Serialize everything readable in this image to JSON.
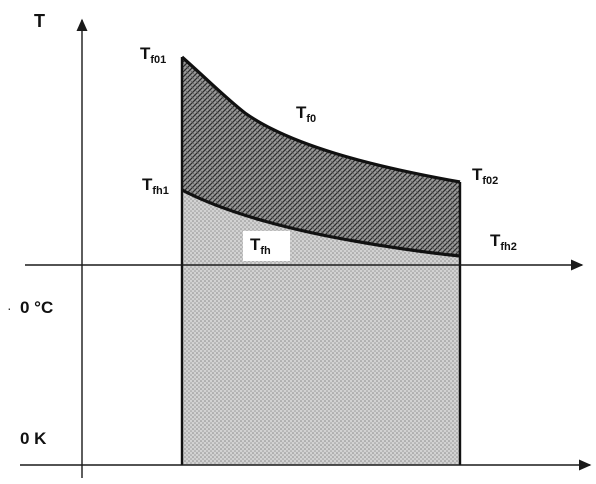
{
  "axes": {
    "y_label": "T",
    "zero_celsius_label": "0 °C",
    "zero_kelvin_label": "0 K"
  },
  "curves": {
    "t_f0": {
      "main": "T",
      "sub": "f0"
    },
    "t_f01": {
      "main": "T",
      "sub": "f01"
    },
    "t_f02": {
      "main": "T",
      "sub": "f02"
    },
    "t_fh": {
      "main": "T",
      "sub": "fh"
    },
    "t_fh1": {
      "main": "T",
      "sub": "fh1"
    },
    "t_fh2": {
      "main": "T",
      "sub": "fh2"
    }
  },
  "colors": {
    "axis": "#1a1a1a",
    "curve": "#111111",
    "upper_band_fill": "#7a7a7a",
    "lower_region_fill": "#c8c8c8",
    "background": "#ffffff"
  }
}
